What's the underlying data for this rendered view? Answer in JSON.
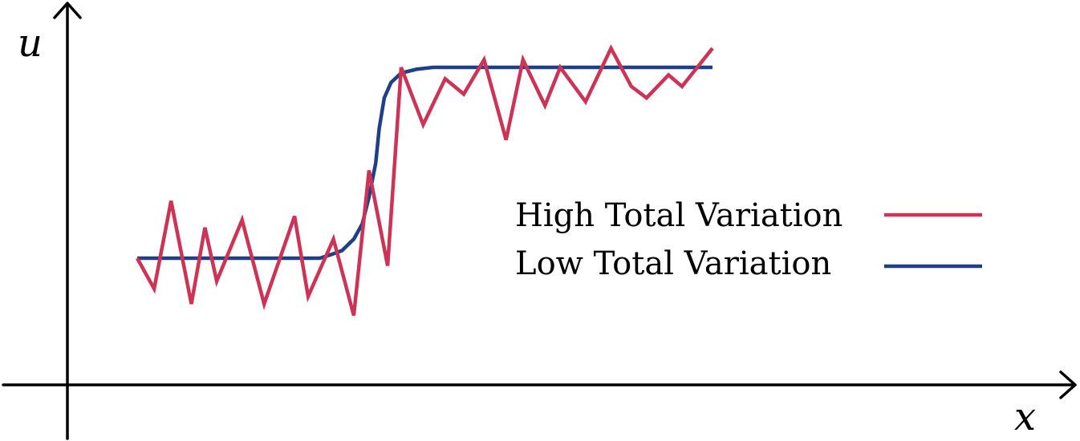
{
  "chart_data": {
    "type": "line",
    "xlabel": "x",
    "ylabel": "u",
    "xlim": [
      0,
      60
    ],
    "ylim": [
      0,
      10
    ],
    "grid": false,
    "legend_placement": "center-right",
    "series": [
      {
        "name": "High Total Variation",
        "color": "#cc3355",
        "x": [
          0,
          1,
          2,
          3.2,
          4,
          4.7,
          6.2,
          7.5,
          9.3,
          10.1,
          11.6,
          12.8,
          13.7,
          14.8,
          15.6,
          16.9,
          18.2,
          19.3,
          20.5,
          21.8,
          22.8,
          24.1,
          25,
          26.5,
          28,
          29.2,
          30.1,
          31.4,
          32.2,
          33.1,
          34
        ],
        "y": [
          5.0,
          4.2,
          6.5,
          3.8,
          5.8,
          4.4,
          6.0,
          3.8,
          6.1,
          4.0,
          5.5,
          3.5,
          7.3,
          4.8,
          10.0,
          8.5,
          9.7,
          9.3,
          10.2,
          8.1,
          10.2,
          9.0,
          10.0,
          9.1,
          10.5,
          9.5,
          9.2,
          9.8,
          9.5,
          10.0,
          10.5
        ]
      },
      {
        "name": "Low Total Variation",
        "color": "#1f3f87",
        "x": [
          0,
          10.8,
          11.5,
          12.1,
          12.8,
          13.3,
          13.7,
          14.1,
          14.3,
          14.6,
          15.0,
          15.6,
          16.5,
          17.5,
          34
        ],
        "y": [
          5.0,
          5.0,
          5.1,
          5.2,
          5.5,
          5.9,
          6.6,
          7.5,
          8.4,
          9.2,
          9.6,
          9.85,
          9.95,
          10.0,
          10.0
        ]
      }
    ]
  }
}
